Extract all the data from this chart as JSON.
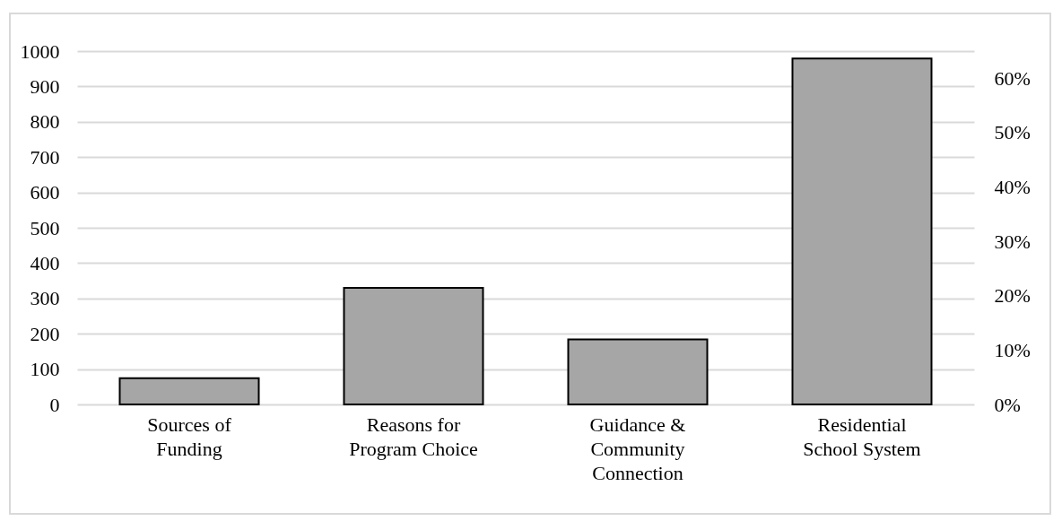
{
  "chart_data": {
    "type": "bar",
    "categories": [
      "Sources of Funding",
      "Reasons for Program Choice",
      "Guidance & Community Connection",
      "Residential School System"
    ],
    "values": [
      74,
      330,
      184,
      979
    ],
    "color": "#a6a6a6",
    "ylim": [
      0,
      1000
    ],
    "yticks": [
      0,
      100,
      200,
      300,
      400,
      500,
      600,
      700,
      800,
      900,
      1000
    ],
    "y2lim": [
      0,
      65
    ],
    "y2ticks": [
      {
        "value": 0,
        "label": "0%"
      },
      {
        "value": 10,
        "label": "10%"
      },
      {
        "value": 20,
        "label": "20%"
      },
      {
        "value": 30,
        "label": "30%"
      },
      {
        "value": 40,
        "label": "40%"
      },
      {
        "value": 50,
        "label": "50%"
      },
      {
        "value": 60,
        "label": "60%"
      }
    ],
    "grid": "y"
  }
}
